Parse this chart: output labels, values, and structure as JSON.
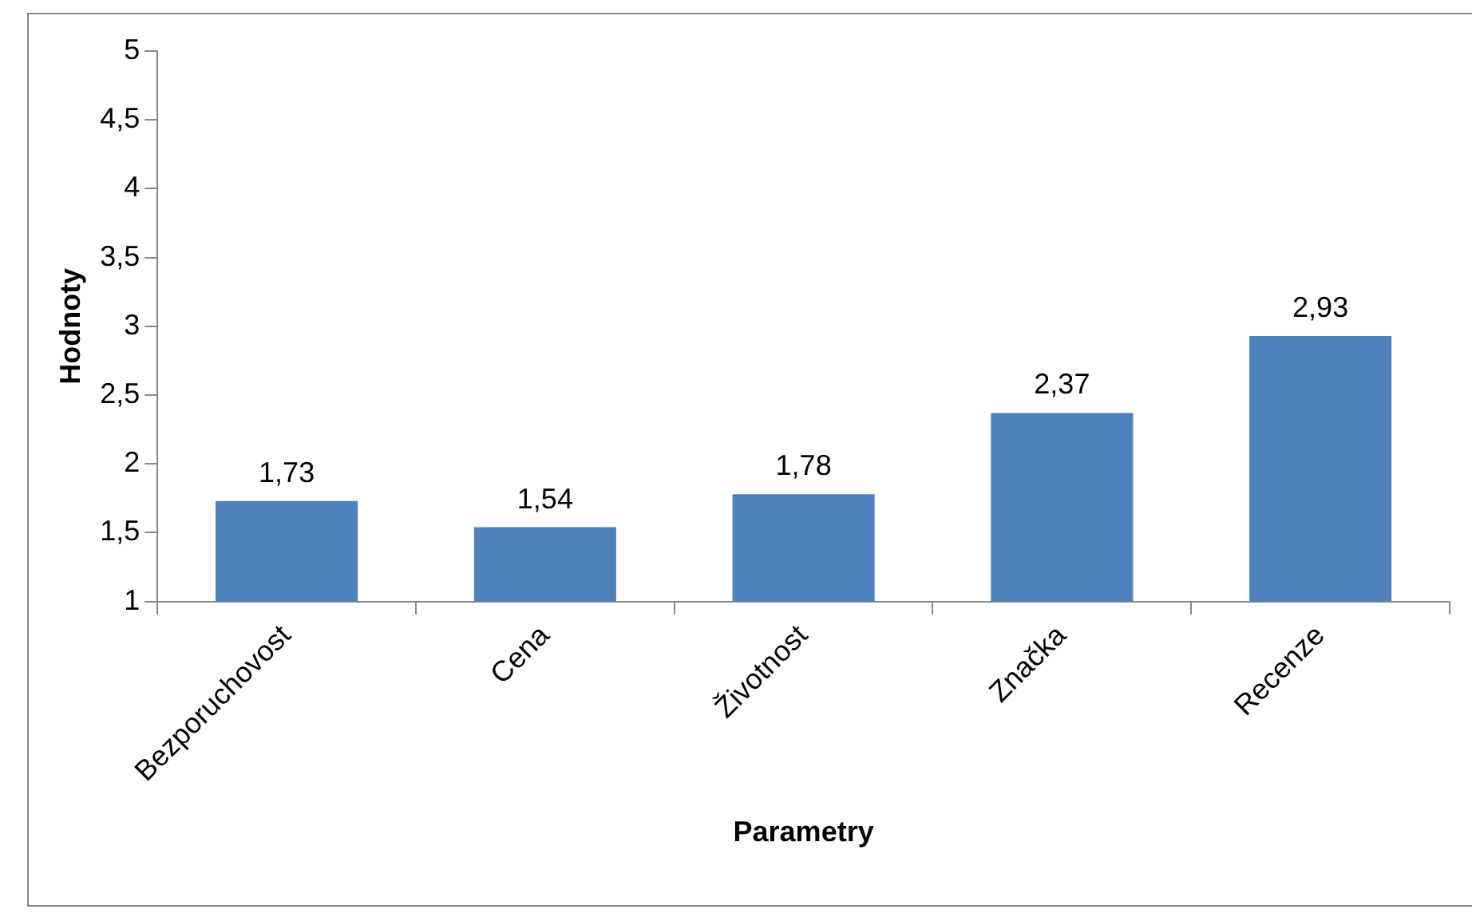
{
  "chart_data": {
    "type": "bar",
    "xlabel": "Parametry",
    "ylabel": "Hodnoty",
    "categories": [
      "Bezporuchovost",
      "Cena",
      "Životnost",
      "Značka",
      "Recenze"
    ],
    "values": [
      1.73,
      1.54,
      1.78,
      2.37,
      2.93
    ],
    "value_labels": [
      "1,73",
      "1,54",
      "1,78",
      "2,37",
      "2,93"
    ],
    "color": "#4f81bd",
    "ylim": [
      1,
      5
    ],
    "yticks": [
      1,
      {
        "value": 1.5,
        "label": "1,5"
      },
      2,
      {
        "value": 2.5,
        "label": "2,5"
      },
      3,
      {
        "value": 3.5,
        "label": "3,5"
      },
      4,
      {
        "value": 4.5,
        "label": "4,5"
      },
      5
    ],
    "grid": false,
    "legend": false
  }
}
